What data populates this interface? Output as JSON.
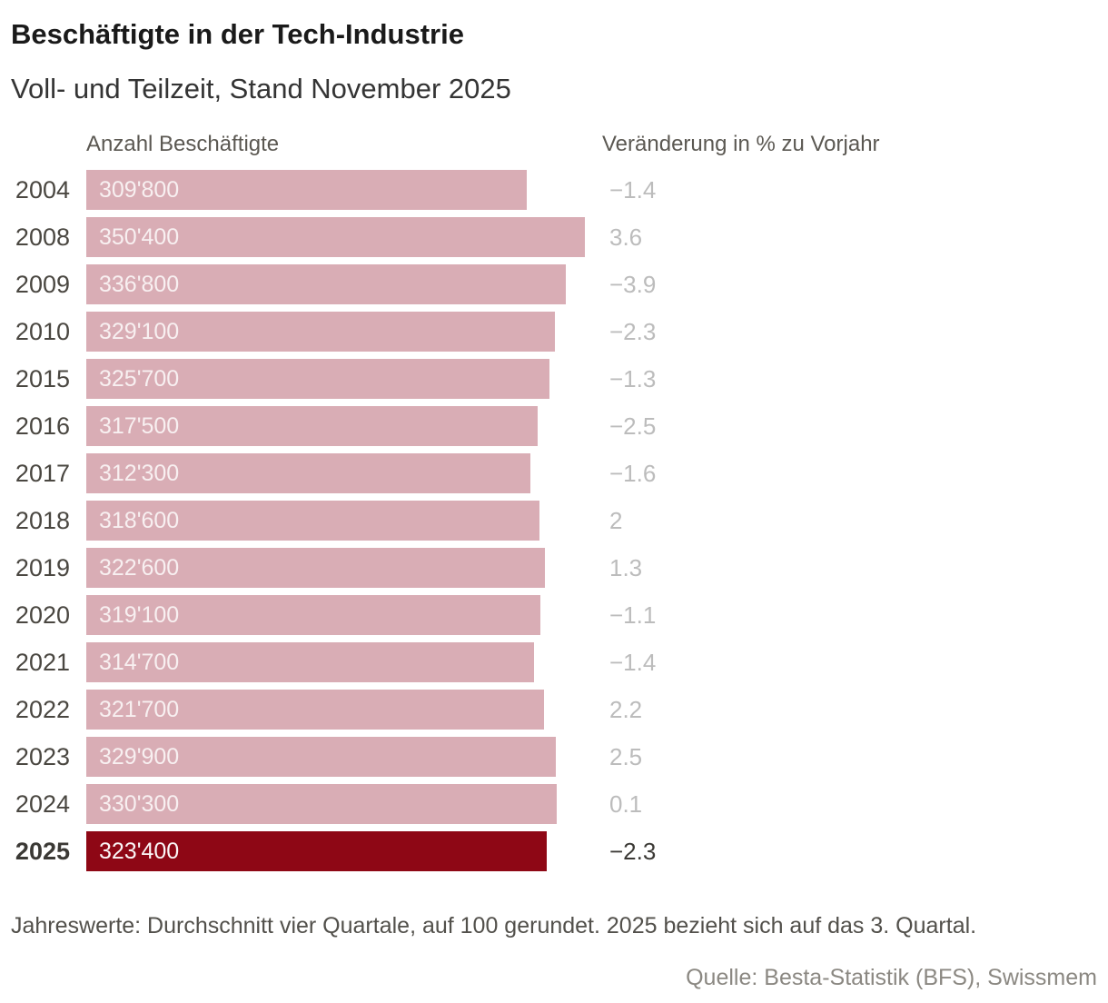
{
  "header": {
    "title": "Beschäftigte in der Tech-Industrie",
    "subtitle": "Voll- und Teilzeit, Stand November 2025"
  },
  "columns": {
    "left": "Anzahl Beschäftigte",
    "right": "Veränderung in % zu Vorjahr"
  },
  "chart_data": {
    "type": "bar",
    "orientation": "horizontal",
    "title": "Beschäftigte in der Tech-Industrie",
    "subtitle": "Voll- und Teilzeit, Stand November 2025",
    "value_column_label": "Anzahl Beschäftigte",
    "change_column_label": "Veränderung in % zu Vorjahr",
    "max_value": 350400,
    "rows": [
      {
        "year": "2004",
        "value": 309800,
        "value_label": "309'800",
        "change_label": "−1.4",
        "highlight": false
      },
      {
        "year": "2008",
        "value": 350400,
        "value_label": "350'400",
        "change_label": "3.6",
        "highlight": false
      },
      {
        "year": "2009",
        "value": 336800,
        "value_label": "336'800",
        "change_label": "−3.9",
        "highlight": false
      },
      {
        "year": "2010",
        "value": 329100,
        "value_label": "329'100",
        "change_label": "−2.3",
        "highlight": false
      },
      {
        "year": "2015",
        "value": 325700,
        "value_label": "325'700",
        "change_label": "−1.3",
        "highlight": false
      },
      {
        "year": "2016",
        "value": 317500,
        "value_label": "317'500",
        "change_label": "−2.5",
        "highlight": false
      },
      {
        "year": "2017",
        "value": 312300,
        "value_label": "312'300",
        "change_label": "−1.6",
        "highlight": false
      },
      {
        "year": "2018",
        "value": 318600,
        "value_label": "318'600",
        "change_label": "2",
        "highlight": false
      },
      {
        "year": "2019",
        "value": 322600,
        "value_label": "322'600",
        "change_label": "1.3",
        "highlight": false
      },
      {
        "year": "2020",
        "value": 319100,
        "value_label": "319'100",
        "change_label": "−1.1",
        "highlight": false
      },
      {
        "year": "2021",
        "value": 314700,
        "value_label": "314'700",
        "change_label": "−1.4",
        "highlight": false
      },
      {
        "year": "2022",
        "value": 321700,
        "value_label": "321'700",
        "change_label": "2.2",
        "highlight": false
      },
      {
        "year": "2023",
        "value": 329900,
        "value_label": "329'900",
        "change_label": "2.5",
        "highlight": false
      },
      {
        "year": "2024",
        "value": 330300,
        "value_label": "330'300",
        "change_label": "0.1",
        "highlight": false
      },
      {
        "year": "2025",
        "value": 323400,
        "value_label": "323'400",
        "change_label": "−2.3",
        "highlight": true
      }
    ]
  },
  "colors": {
    "bar": "#d9adb5",
    "bar_highlight": "#8e0715",
    "change_label": "#bcbcbc",
    "change_label_highlight": "#3b3935"
  },
  "footer": {
    "note": "Jahreswerte: Durchschnitt vier Quartale, auf 100 gerundet. 2025 bezieht sich auf das 3. Quartal.",
    "source": "Quelle: Besta-Statistik (BFS), Swissmem"
  }
}
